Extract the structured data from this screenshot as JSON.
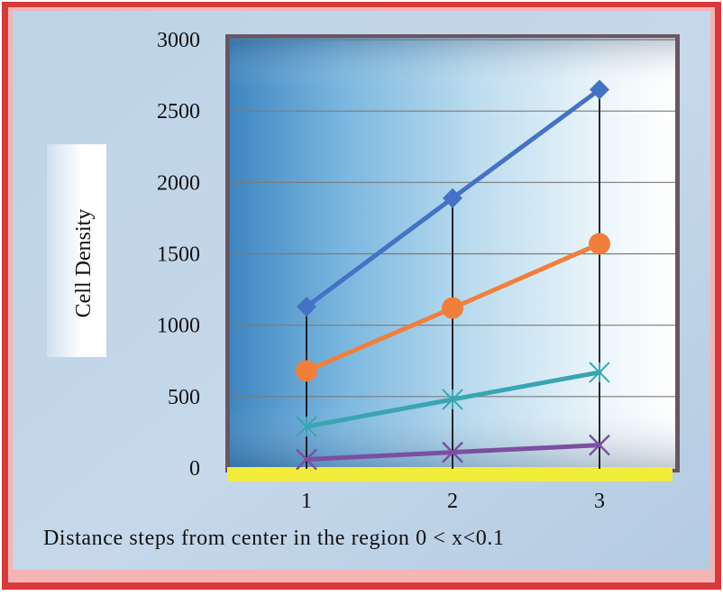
{
  "chart_data": {
    "type": "line",
    "title": "",
    "xlabel": "Distance steps from center in the region 0 < x<0.1",
    "ylabel": "Cell Density",
    "categories": [
      "1",
      "2",
      "3"
    ],
    "ylim": [
      0,
      3000
    ],
    "yticks": [
      "0",
      "500",
      "1000",
      "1500",
      "2000",
      "2500",
      "3000"
    ],
    "grid": true,
    "series": [
      {
        "values": [
          1130,
          1890,
          2650
        ],
        "color": "#4472c4",
        "marker": "diamond"
      },
      {
        "values": [
          680,
          1120,
          1570
        ],
        "color": "#f07f3c",
        "marker": "circle"
      },
      {
        "values": [
          290,
          480,
          670
        ],
        "color": "#3aa5b2",
        "marker": "star"
      },
      {
        "values": [
          60,
          110,
          160
        ],
        "color": "#7b4fa0",
        "marker": "x"
      }
    ]
  }
}
